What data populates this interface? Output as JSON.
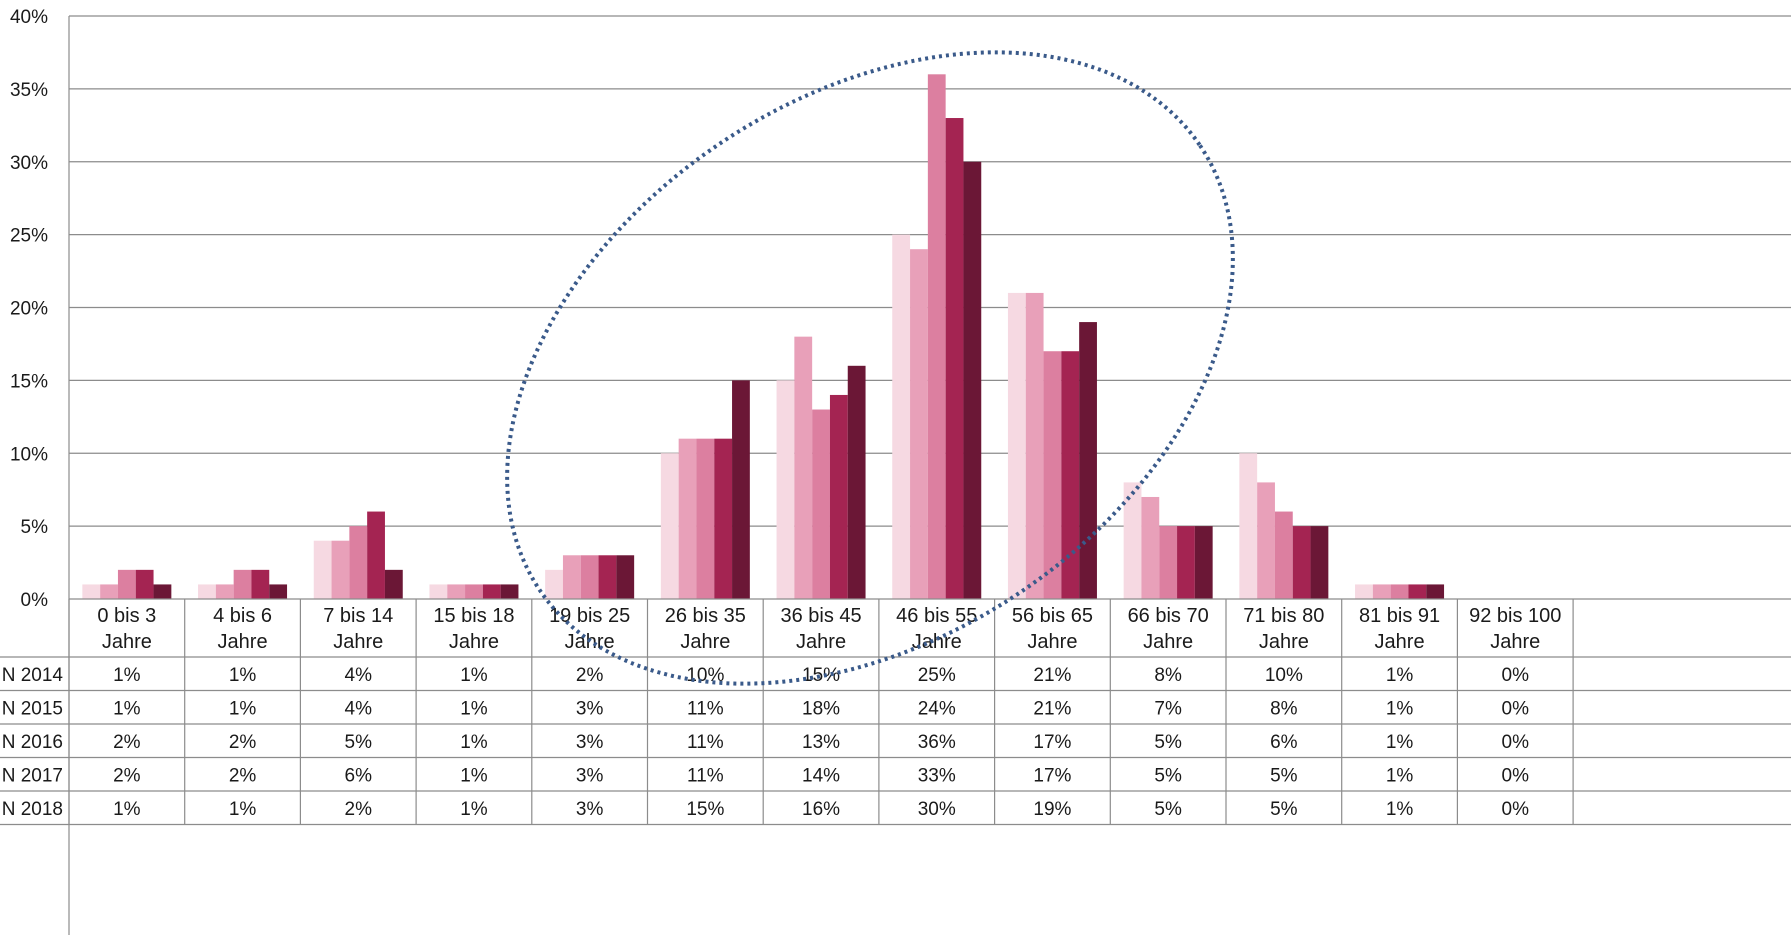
{
  "chart_data": {
    "type": "bar",
    "categories": [
      [
        "0 bis 3",
        "Jahre"
      ],
      [
        "4 bis 6",
        "Jahre"
      ],
      [
        "7 bis 14",
        "Jahre"
      ],
      [
        "15 bis 18",
        "Jahre"
      ],
      [
        "19 bis 25",
        "Jahre"
      ],
      [
        "26 bis 35",
        "Jahre"
      ],
      [
        "36 bis 45",
        "Jahre"
      ],
      [
        "46 bis 55",
        "Jahre"
      ],
      [
        "56 bis 65",
        "Jahre"
      ],
      [
        "66 bis 70",
        "Jahre"
      ],
      [
        "71 bis 80",
        "Jahre"
      ],
      [
        "81 bis 91",
        "Jahre"
      ],
      [
        "92 bis 100",
        "Jahre"
      ]
    ],
    "series": [
      {
        "name": "N 2014",
        "color": "#f6d9e2",
        "values": [
          1,
          1,
          4,
          1,
          2,
          10,
          15,
          25,
          21,
          8,
          10,
          1,
          0
        ]
      },
      {
        "name": "N 2015",
        "color": "#e8a0b9",
        "values": [
          1,
          1,
          4,
          1,
          3,
          11,
          18,
          24,
          21,
          7,
          8,
          1,
          0
        ]
      },
      {
        "name": "N 2016",
        "color": "#dc7fa0",
        "values": [
          2,
          2,
          5,
          1,
          3,
          11,
          13,
          36,
          17,
          5,
          6,
          1,
          0
        ]
      },
      {
        "name": "N 2017",
        "color": "#a42452",
        "values": [
          2,
          2,
          6,
          1,
          3,
          11,
          14,
          33,
          17,
          5,
          5,
          1,
          0
        ]
      },
      {
        "name": "N 2018",
        "color": "#6b1736",
        "values": [
          1,
          1,
          2,
          1,
          3,
          15,
          16,
          30,
          19,
          5,
          5,
          1,
          0
        ]
      }
    ],
    "ylim": [
      0,
      40
    ],
    "yticks": [
      0,
      5,
      10,
      15,
      20,
      25,
      30,
      35,
      40
    ],
    "ytick_format": "%",
    "grid": true,
    "legend": "data-table-below",
    "annotation": {
      "shape": "dotted-ellipse",
      "color": "#3a5a8a"
    }
  }
}
